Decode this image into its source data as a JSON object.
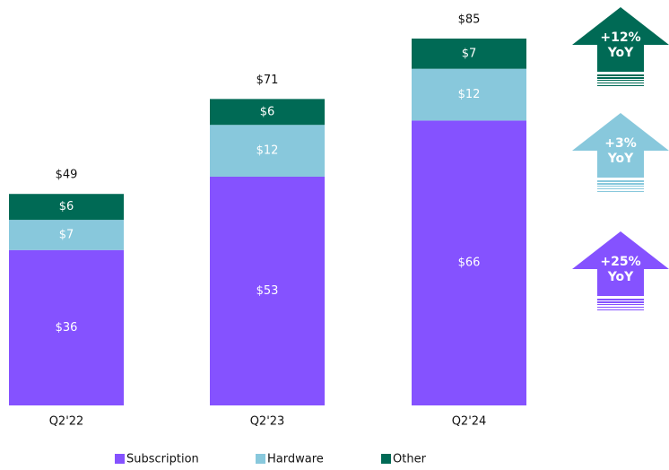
{
  "chart_data": {
    "type": "stacked-bar",
    "categories": [
      "Q2'22",
      "Q2'23",
      "Q2'24"
    ],
    "series": [
      {
        "name": "Subscription",
        "color": "#8552ff",
        "values": [
          36,
          53,
          66
        ],
        "value_labels": [
          "$36",
          "$53",
          "$66"
        ]
      },
      {
        "name": "Hardware",
        "color": "#88c8dc",
        "values": [
          7,
          12,
          12
        ],
        "value_labels": [
          "$7",
          "$12",
          "$12"
        ]
      },
      {
        "name": "Other",
        "color": "#006a55",
        "values": [
          6,
          6,
          7
        ],
        "value_labels": [
          "$6",
          "$6",
          "$7"
        ]
      }
    ],
    "totals": [
      49,
      71,
      85
    ],
    "total_labels": [
      "$49",
      "$71",
      "$85"
    ],
    "annotations": [
      {
        "text": "+12%",
        "subtext": "YoY",
        "color": "#006a55"
      },
      {
        "text": "+3%",
        "subtext": "YoY",
        "color": "#88c8dc"
      },
      {
        "text": "+25%",
        "subtext": "YoY",
        "color": "#8552ff"
      }
    ],
    "legend": "bottom"
  }
}
